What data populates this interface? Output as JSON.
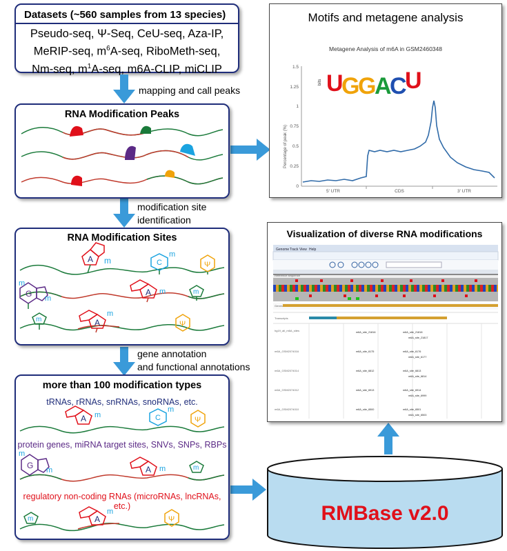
{
  "datasets": {
    "title": "Datasets (~560 samples from 13 species)",
    "methods_line1": "Pseudo-seq, Ψ-Seq, CeU-seq, Aza-IP,",
    "methods_line2_a": "MeRIP-seq, m",
    "methods_line2_sup": "6",
    "methods_line2_b": "A-seq, RiboMeth-seq,",
    "methods_line3_a": "Nm-seq, m",
    "methods_line3_sup": "1",
    "methods_line3_b": "A-seq, m6A-CLIP, miCLIP"
  },
  "arrows": {
    "step1": "mapping and call peaks",
    "step2_line1": "modification site",
    "step2_line2": "identification",
    "step3_line1": "gene annotation",
    "step3_line2": "and functional annotations"
  },
  "peaks": {
    "title": "RNA Modification Peaks"
  },
  "sites": {
    "title": "RNA Modification Sites",
    "base_a": "A",
    "base_c": "C",
    "base_g": "G",
    "psi": "Ψ",
    "m": "m"
  },
  "types": {
    "title": "more than 100 modification types",
    "line1": "tRNAs, rRNAs, snRNAs, snoRNAs, etc.",
    "line2": "protein genes, miRNA target sites, SNVs, SNPs, RBPs",
    "line3": "regulatory non-coding RNAs (microRNAs, lncRNAs, etc.)"
  },
  "motif_panel": {
    "title": "Motifs and metagene analysis",
    "chart_title": "Metagene Analysis of m6A in GSM2460348",
    "motif": [
      "U",
      "G",
      "G",
      "A",
      "C",
      "U"
    ],
    "ylabel": "Percentage of peak (%)",
    "bits_label": "bits",
    "yticks": [
      "1.5",
      "1.25",
      "1",
      "0.75",
      "0.5",
      "0.25",
      "0"
    ],
    "xticks": [
      "5' UTR",
      "CDS",
      "3' UTR"
    ]
  },
  "viz_panel": {
    "title": "Visualization of diverse RNA modifications",
    "menu": [
      "Genome",
      "Track",
      "View",
      "Help"
    ],
    "tracks": [
      "Reference sequence",
      "Genes",
      "Transcripts",
      "hg19_all_m6A_sites",
      "m6A_GSM2074016",
      "m6A_GSM2074014",
      "m6A_GSM2074012",
      "m6A_GSM2074010"
    ],
    "sites_col1": [
      "m6A_site_21816",
      "m6A_site_6175",
      "m6A_site_6812",
      "m6A_site_6913",
      "m6A_site_6500"
    ],
    "sites_col2": [
      "m6A_site_21818",
      "m6A_site_6176",
      "m6A_site_6813",
      "m6A_site_6914",
      "m6A_site_6501"
    ],
    "sites_col2b": [
      "m6A_site_21817",
      "m6A_site_6177",
      "m6A_site_6814",
      "m6A_site_6999",
      "m6A_site_6503"
    ]
  },
  "database": {
    "label": "RMBase v2.0"
  },
  "colors": {
    "box_border": "#1f2d7a",
    "arrow": "#3a9ad9",
    "red": "#e0101a",
    "green": "#1a7a3a",
    "purple": "#5b2a86",
    "cyan": "#1aa3e0",
    "orange": "#f0a30a",
    "db_fill": "#b9dcf0"
  }
}
